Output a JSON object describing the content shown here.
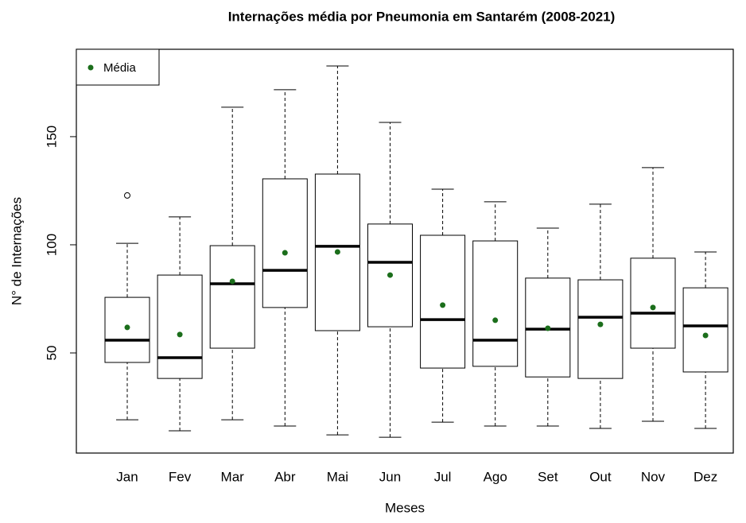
{
  "chart_data": {
    "type": "boxplot",
    "title": "Internações média por Pneumonia em Santarém (2008-2021)",
    "x_label": "Meses",
    "y_label": "N° de Internações",
    "categories": [
      "Jan",
      "Fev",
      "Mar",
      "Abr",
      "Mai",
      "Jun",
      "Jul",
      "Ago",
      "Set",
      "Out",
      "Nov",
      "Dez"
    ],
    "whisker_low": [
      19.1,
      14.0,
      19.1,
      16.2,
      12.1,
      11.0,
      18.0,
      16.2,
      16.2,
      15.1,
      18.4,
      15.1
    ],
    "q1": [
      45.6,
      38.2,
      52.2,
      71.0,
      60.3,
      62.1,
      43.0,
      43.8,
      38.9,
      38.2,
      52.2,
      41.2
    ],
    "median": [
      55.9,
      47.8,
      82.0,
      88.2,
      99.3,
      91.9,
      65.4,
      55.9,
      61.0,
      66.5,
      68.4,
      62.5
    ],
    "q3": [
      75.7,
      86.0,
      99.6,
      130.5,
      132.7,
      109.6,
      104.4,
      101.8,
      84.6,
      83.8,
      93.8,
      80.1
    ],
    "whisker_high": [
      100.7,
      112.9,
      163.6,
      171.7,
      182.7,
      156.6,
      125.7,
      119.9,
      107.7,
      118.8,
      135.7,
      96.7
    ],
    "mean": [
      61.8,
      58.5,
      83.1,
      96.3,
      96.7,
      86.0,
      72.1,
      65.1,
      61.4,
      63.2,
      71.0,
      58.1
    ],
    "outliers": [
      [
        122.8
      ],
      [],
      [],
      [],
      [],
      [],
      [],
      [],
      [],
      [],
      [],
      []
    ],
    "mean_name": "Média",
    "mean_color": "#1b6e1b",
    "box_color": "#000000",
    "legend_position": "top-left",
    "ylim": [
      3.7,
      190.4
    ],
    "yticks": [
      50,
      100,
      150
    ]
  }
}
